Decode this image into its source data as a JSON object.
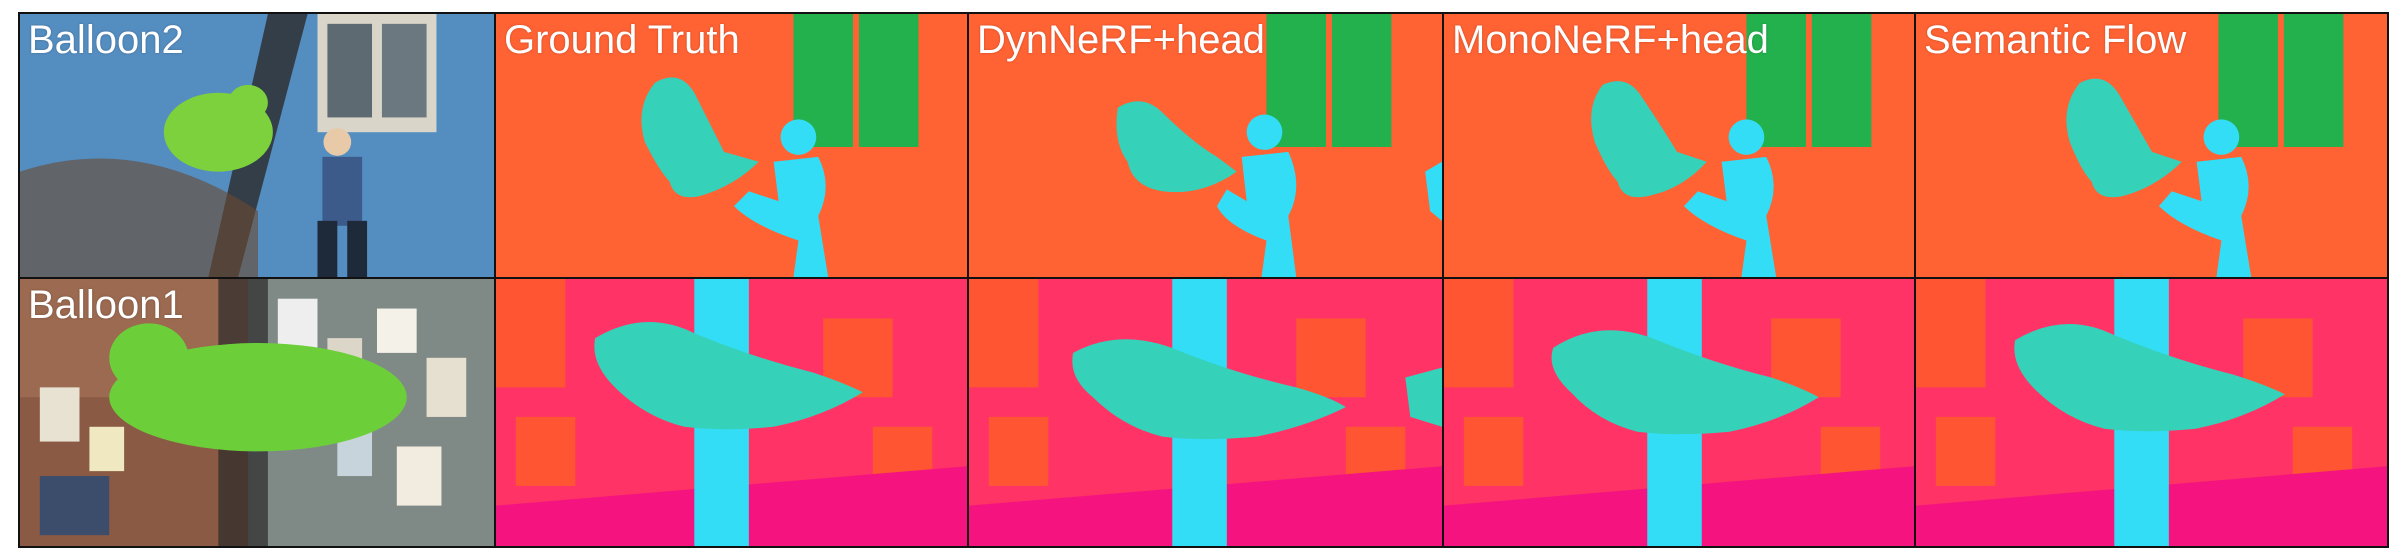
{
  "rows": [
    {
      "photo_label": "Balloon2"
    },
    {
      "photo_label": "Balloon1"
    }
  ],
  "columns": [
    {
      "header": "Ground Truth"
    },
    {
      "header": "DynNeRF+head"
    },
    {
      "header": "MonoNeRF+head"
    },
    {
      "header": "Semantic Flow"
    }
  ],
  "colors": {
    "background_orange": "#ff6233",
    "window_green": "#22b14c",
    "balloon_teal": "#35d1b9",
    "person_cyan": "#33ddf5",
    "wall_pink": "#ff3366",
    "floor_magenta": "#f5147f",
    "poster_orange": "#ff5533",
    "photo_wall_blue": "#4f8fc0",
    "photo_brick": "#8a5a44"
  }
}
